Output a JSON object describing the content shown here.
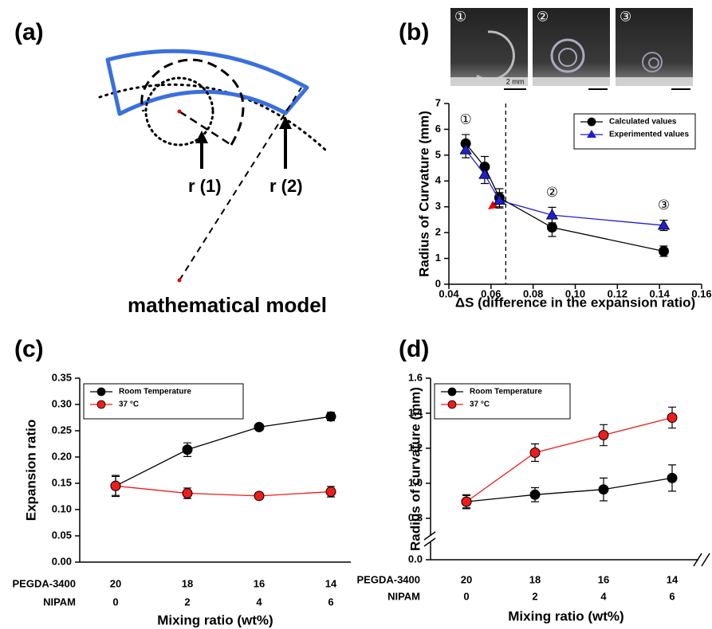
{
  "panel_labels": [
    "(a)",
    "(b)",
    "(c)",
    "(d)"
  ],
  "diagram": {
    "labels": [
      "r (1)",
      "r (2)"
    ],
    "caption": "mathematical model"
  },
  "photos": {
    "labels": [
      "①",
      "②",
      "③"
    ],
    "scale_bar": "2 mm"
  },
  "chart_data": [
    {
      "type": "line",
      "ylabel": "Radius of Curvature (mm)",
      "xlabel": "ΔS (difference in the expansion ratio)",
      "x": [
        0.048,
        0.057,
        0.064,
        0.089,
        0.142
      ],
      "series": [
        {
          "name": "Calculated values",
          "color": "#000000",
          "marker": "circle",
          "values": [
            5.45,
            4.55,
            3.35,
            2.2,
            1.28
          ],
          "errors": [
            0.35,
            0.4,
            0.35,
            0.35,
            0.2
          ]
        },
        {
          "name": "Experimented values",
          "color": "#1f1fd0",
          "marker": "triangle",
          "values": [
            5.2,
            4.25,
            3.25,
            2.68,
            2.28
          ],
          "errors": [
            0.3,
            0.35,
            0.3,
            0.3,
            0.2
          ]
        }
      ],
      "threshold_x": 0.067,
      "annotations": [
        "①",
        "②",
        "③"
      ],
      "xlim": [
        0.04,
        0.16
      ],
      "xticks": [
        0.04,
        0.06,
        0.08,
        {
          "value": 0.1,
          "label": "0.10"
        },
        0.12,
        0.14,
        0.16
      ],
      "ylim": [
        0,
        7
      ],
      "yticks": [
        0,
        1,
        2,
        3,
        4,
        5,
        6,
        7
      ],
      "legend": "upper right"
    },
    {
      "type": "line",
      "ylabel": "Expansion ratio",
      "xlabel": "Mixing ratio (wt%)",
      "category_names": [
        "PEGDA-3400",
        "NIPAM"
      ],
      "categories": [
        "20",
        "18",
        "16",
        "14"
      ],
      "categories2": [
        "0",
        "2",
        "4",
        "6"
      ],
      "series": [
        {
          "name": "Room Temperature",
          "color": "#000000",
          "marker": "circle",
          "values": [
            0.145,
            0.214,
            0.257,
            0.277
          ],
          "errors": [
            0.02,
            0.013,
            0.005,
            0.008
          ]
        },
        {
          "name": "37 °C",
          "color": "#ee1c1c",
          "marker": "circle",
          "values": [
            0.145,
            0.131,
            0.126,
            0.134
          ],
          "errors": [
            0.018,
            0.01,
            0.006,
            0.01
          ]
        }
      ],
      "ylim": [
        0,
        0.35
      ],
      "yticks": [
        {
          "value": 0,
          "label": "0.00"
        },
        0.05,
        {
          "value": 0.1,
          "label": "0.10"
        },
        0.15,
        {
          "value": 0.2,
          "label": "0.20"
        },
        0.25,
        {
          "value": 0.3,
          "label": "0.30"
        },
        0.35
      ],
      "legend": "upper left"
    },
    {
      "type": "line",
      "ylabel": "Radius of curvature (mm)",
      "xlabel": "Mixing ratio (wt%)",
      "category_names": [
        "PEGDA-3400",
        "NIPAM"
      ],
      "categories": [
        "20",
        "18",
        "16",
        "14"
      ],
      "categories2": [
        "0",
        "2",
        "4",
        "6"
      ],
      "series": [
        {
          "name": "Room Temperature",
          "color": "#000000",
          "marker": "circle",
          "values": [
            0.895,
            0.935,
            0.965,
            1.03
          ],
          "errors": [
            0.04,
            0.04,
            0.065,
            0.075
          ]
        },
        {
          "name": "37 °C",
          "color": "#ee1c1c",
          "marker": "circle",
          "values": [
            0.895,
            1.175,
            1.275,
            1.375
          ],
          "errors": [
            0.035,
            0.05,
            0.06,
            0.06
          ]
        }
      ],
      "ylim": [
        0.8,
        1.6
      ],
      "yticks": [
        0.8,
        {
          "value": 1,
          "label": "1.0"
        },
        1.2,
        1.4,
        1.6
      ],
      "axis_break_tick": {
        "value": 0,
        "label": "0.0"
      },
      "legend": "upper left"
    }
  ]
}
